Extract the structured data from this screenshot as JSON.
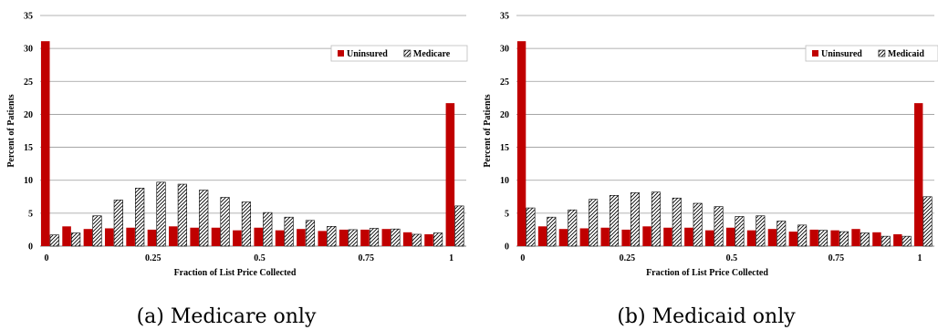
{
  "colors": {
    "uninsured": "#C00000",
    "hatch_stroke": "#000000",
    "grid": "#9a9a9a",
    "axis": "#808080"
  },
  "chart_data": [
    {
      "type": "bar",
      "caption": "(a) Medicare only",
      "xlabel": "Fraction of List Price Collected",
      "ylabel": "Percent of Patients",
      "ylim": [
        0,
        35
      ],
      "yticks": [
        "0",
        "5",
        "10",
        "15",
        "20",
        "25",
        "30",
        "35"
      ],
      "xtick_labels": [
        "0",
        "0.25",
        "0.5",
        "0.75",
        "1"
      ],
      "grid": true,
      "legend_position": "top-right",
      "series": [
        {
          "name": "Uninsured",
          "style": "solid",
          "values": [
            31.1,
            3.0,
            2.6,
            2.7,
            2.8,
            2.5,
            3.0,
            2.8,
            2.8,
            2.4,
            2.8,
            2.4,
            2.6,
            2.3,
            2.5,
            2.5,
            2.6,
            2.1,
            1.8,
            21.7
          ]
        },
        {
          "name": "Medicare",
          "style": "hatched",
          "values": [
            1.7,
            2.0,
            4.6,
            7.0,
            8.8,
            9.7,
            9.4,
            8.5,
            7.4,
            6.7,
            5.1,
            4.4,
            3.9,
            3.0,
            2.5,
            2.7,
            2.6,
            1.8,
            2.0,
            6.1
          ]
        }
      ]
    },
    {
      "type": "bar",
      "caption": "(b) Medicaid only",
      "xlabel": "Fraction of List Price Collected",
      "ylabel": "Percent of Patients",
      "ylim": [
        0,
        35
      ],
      "yticks": [
        "0",
        "5",
        "10",
        "15",
        "20",
        "25",
        "30",
        "35"
      ],
      "xtick_labels": [
        "0",
        "0.25",
        "0.5",
        "0.75",
        "1"
      ],
      "grid": true,
      "legend_position": "top-right",
      "series": [
        {
          "name": "Uninsured",
          "style": "solid",
          "values": [
            31.1,
            3.0,
            2.6,
            2.7,
            2.8,
            2.5,
            3.0,
            2.8,
            2.8,
            2.4,
            2.8,
            2.4,
            2.6,
            2.2,
            2.5,
            2.4,
            2.6,
            2.1,
            1.8,
            21.7
          ]
        },
        {
          "name": "Medicaid",
          "style": "hatched",
          "values": [
            5.8,
            4.4,
            5.5,
            7.1,
            7.7,
            8.1,
            8.2,
            7.3,
            6.5,
            6.0,
            4.5,
            4.6,
            3.8,
            3.2,
            2.4,
            2.2,
            2.0,
            1.5,
            1.5,
            7.5
          ]
        }
      ]
    }
  ]
}
